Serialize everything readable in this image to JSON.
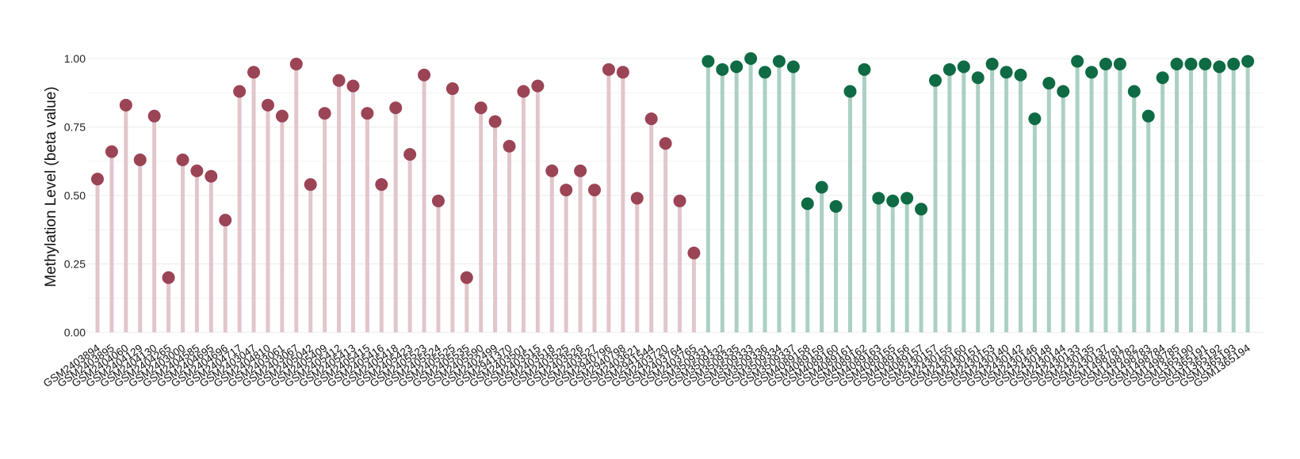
{
  "chart_data": {
    "type": "lollipop",
    "title": "",
    "xlabel": "",
    "ylabel": "Methylation Level (beta value)",
    "ylim": [
      0,
      1
    ],
    "yticks": [
      "0.00",
      "0.25",
      "0.50",
      "0.75",
      "1.00"
    ],
    "grid": true,
    "legend": "none",
    "colors": {
      "group1_point": "#9b4455",
      "group1_stem": "#e2c6cc",
      "group2_point": "#0e6b44",
      "group2_stem": "#abd0c2",
      "grid": "#ececec"
    },
    "categories": [
      "GSM2403894",
      "GSM2403895",
      "GSM2404060",
      "GSM2404129",
      "GSM2404130",
      "GSM2404265",
      "GSM2403000",
      "GSM2404585",
      "GSM2404695",
      "GSM2404696",
      "GSM2404717",
      "GSM2403047",
      "GSM2404810",
      "GSM2403061",
      "GSM2403067",
      "GSM2405042",
      "GSM2405409",
      "GSM2405412",
      "GSM2405413",
      "GSM2405415",
      "GSM2405416",
      "GSM2405418",
      "GSM2405423",
      "GSM2405523",
      "GSM2405524",
      "GSM2405525",
      "GSM2405535",
      "GSM2405590",
      "GSM2402499",
      "GSM2941370",
      "GSM2403501",
      "GSM2403515",
      "GSM2403518",
      "GSM2403525",
      "GSM2403526",
      "GSM2403527",
      "GSM2940796",
      "GSM2940798",
      "GSM2403621",
      "GSM2941544",
      "GSM2403720",
      "GSM2403764",
      "GSM2403765",
      "GSM3509331",
      "GSM3509332",
      "GSM3509335",
      "GSM3509333",
      "GSM3509336",
      "GSM3509334",
      "GSM3509337",
      "GSM4089158",
      "GSM4089159",
      "GSM4089160",
      "GSM4089161",
      "GSM4089162",
      "GSM4089163",
      "GSM4089155",
      "GSM4089156",
      "GSM4089157",
      "GSM2430157",
      "GSM2430155",
      "GSM2430160",
      "GSM2430151",
      "GSM2430153",
      "GSM2430140",
      "GSM2430142",
      "GSM2430146",
      "GSM2430148",
      "GSM2430144",
      "GSM2430133",
      "GSM2430135",
      "GSM2430137",
      "GSM1498781",
      "GSM1498782",
      "GSM1498783",
      "GSM1498784",
      "GSM1498785",
      "GSM1365190",
      "GSM1365191",
      "GSM1365192",
      "GSM1365193",
      "GSM1365194"
    ],
    "groups": [
      0,
      0,
      0,
      0,
      0,
      0,
      0,
      0,
      0,
      0,
      0,
      0,
      0,
      0,
      0,
      0,
      0,
      0,
      0,
      0,
      0,
      0,
      0,
      0,
      0,
      0,
      0,
      0,
      0,
      0,
      0,
      0,
      0,
      0,
      0,
      0,
      0,
      0,
      0,
      0,
      0,
      0,
      0,
      1,
      1,
      1,
      1,
      1,
      1,
      1,
      1,
      1,
      1,
      1,
      1,
      1,
      1,
      1,
      1,
      1,
      1,
      1,
      1,
      1,
      1,
      1,
      1,
      1,
      1,
      1,
      1,
      1,
      1,
      1,
      1,
      1,
      1,
      1,
      1,
      1,
      1,
      1
    ],
    "values": [
      0.56,
      0.66,
      0.83,
      0.63,
      0.79,
      0.2,
      0.63,
      0.59,
      0.57,
      0.41,
      0.88,
      0.95,
      0.83,
      0.79,
      0.98,
      0.54,
      0.8,
      0.92,
      0.9,
      0.8,
      0.54,
      0.82,
      0.65,
      0.94,
      0.48,
      0.89,
      0.2,
      0.82,
      0.77,
      0.68,
      0.88,
      0.9,
      0.59,
      0.52,
      0.59,
      0.52,
      0.96,
      0.95,
      0.49,
      0.78,
      0.69,
      0.48,
      0.29,
      0.99,
      0.96,
      0.97,
      1.0,
      0.95,
      0.99,
      0.97,
      0.47,
      0.53,
      0.46,
      0.88,
      0.96,
      0.49,
      0.48,
      0.49,
      0.45,
      0.92,
      0.96,
      0.97,
      0.93,
      0.98,
      0.95,
      0.94,
      0.78,
      0.91,
      0.88,
      0.99,
      0.95,
      0.98,
      0.98,
      0.88,
      0.79,
      0.93,
      0.98,
      0.98,
      0.98,
      0.97,
      0.98,
      0.99
    ]
  }
}
